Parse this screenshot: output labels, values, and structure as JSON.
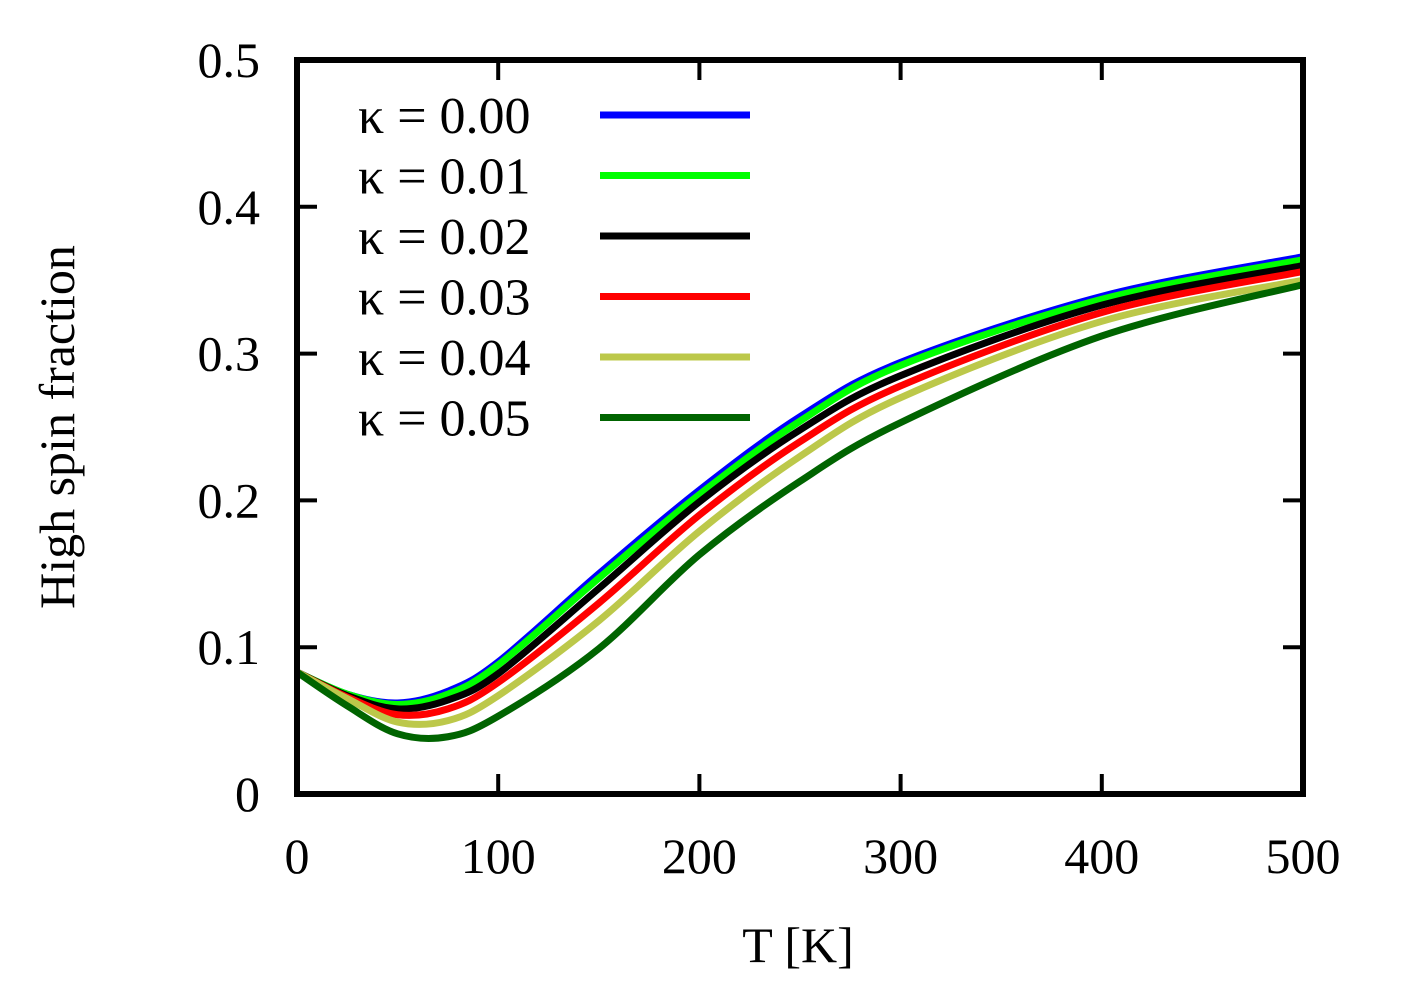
{
  "chart_data": {
    "type": "line",
    "title": "",
    "xlabel": "T [K]",
    "ylabel": "High spin fraction",
    "xlim": [
      0,
      500
    ],
    "ylim": [
      0,
      0.5
    ],
    "xticks": [
      "0",
      "100",
      "200",
      "300",
      "400",
      "500"
    ],
    "yticks": [
      "0",
      "0.1",
      "0.2",
      "0.3",
      "0.4",
      "0.5"
    ],
    "grid": false,
    "legend_position": "top-left",
    "x": [
      0,
      25,
      50,
      75,
      100,
      150,
      200,
      250,
      300,
      400,
      500
    ],
    "series": [
      {
        "name": "κ = 0.00",
        "color": "#0000ff",
        "values": [
          0.083,
          0.068,
          0.062,
          0.07,
          0.09,
          0.15,
          0.207,
          0.257,
          0.294,
          0.339,
          0.366
        ]
      },
      {
        "name": "κ = 0.01",
        "color": "#00ff00",
        "values": [
          0.083,
          0.068,
          0.061,
          0.068,
          0.088,
          0.147,
          0.204,
          0.254,
          0.292,
          0.337,
          0.364
        ]
      },
      {
        "name": "κ = 0.02",
        "color": "#000000",
        "values": [
          0.083,
          0.067,
          0.058,
          0.064,
          0.082,
          0.14,
          0.199,
          0.248,
          0.285,
          0.333,
          0.36
        ]
      },
      {
        "name": "κ = 0.03",
        "color": "#ff0000",
        "values": [
          0.083,
          0.066,
          0.054,
          0.058,
          0.076,
          0.13,
          0.19,
          0.24,
          0.278,
          0.328,
          0.356
        ]
      },
      {
        "name": "κ = 0.04",
        "color": "#bcc84a",
        "values": [
          0.083,
          0.065,
          0.049,
          0.05,
          0.067,
          0.118,
          0.179,
          0.23,
          0.27,
          0.322,
          0.35
        ]
      },
      {
        "name": "κ = 0.05",
        "color": "#006400",
        "values": [
          0.083,
          0.06,
          0.041,
          0.039,
          0.053,
          0.099,
          0.163,
          0.213,
          0.253,
          0.312,
          0.347
        ]
      }
    ]
  }
}
